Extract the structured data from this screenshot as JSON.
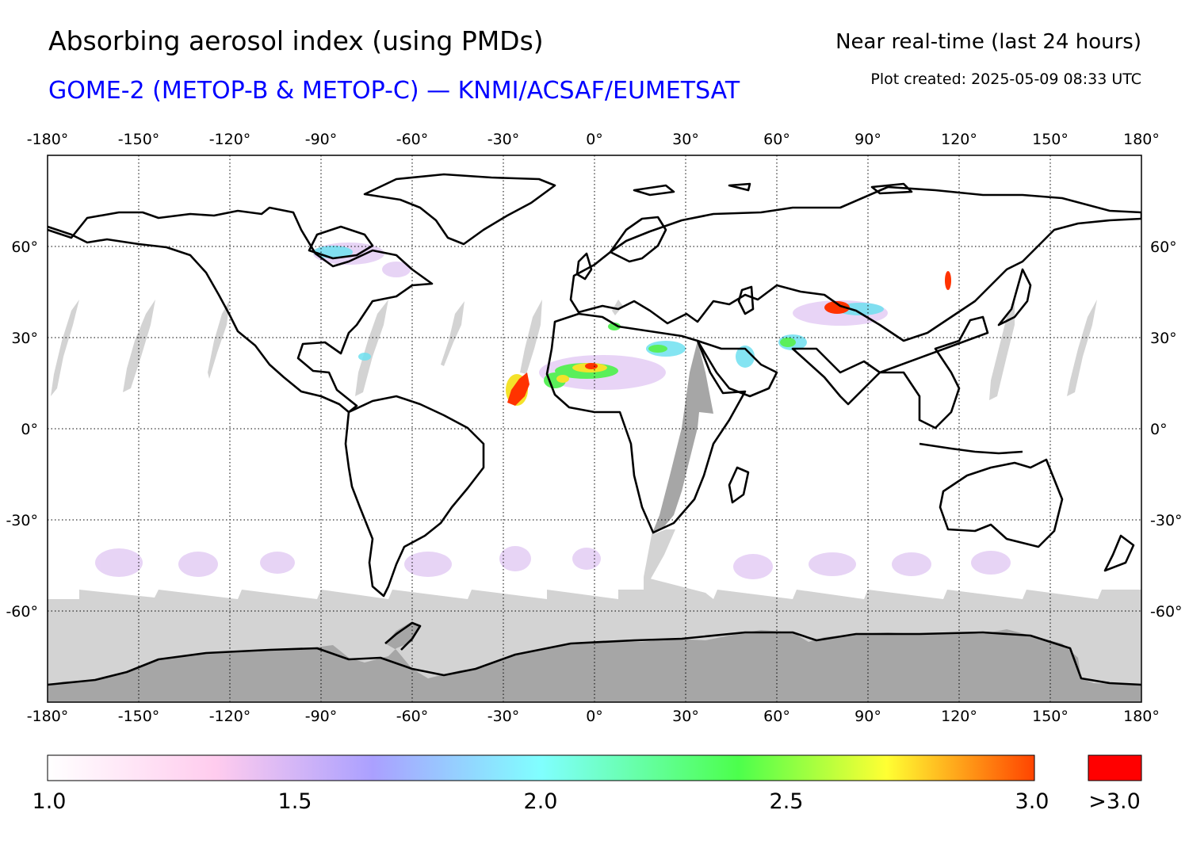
{
  "header": {
    "title": "Absorbing aerosol index (using PMDs)",
    "subtitle": "GOME-2 (METOP-B & METOP-C) — KNMI/ACSAF/EUMETSAT",
    "subtitle_color": "#0000ff",
    "mode": "Near real-time (last 24 hours)",
    "created": "Plot created: 2025-05-09 08:33 UTC"
  },
  "map": {
    "projection": "plate-carree",
    "lon_range": [
      -180,
      180
    ],
    "lat_range": [
      -90,
      90
    ],
    "lon_ticks": [
      "-180°",
      "-150°",
      "-120°",
      "-90°",
      "-60°",
      "-30°",
      "0°",
      "30°",
      "60°",
      "90°",
      "120°",
      "150°",
      "180°"
    ],
    "lat_ticks": [
      "60°",
      "30°",
      "0°",
      "-30°",
      "-60°"
    ],
    "grid": "dotted",
    "no_data_color": "#d3d3d3",
    "land_mask_color": "#a6a6a6",
    "coastline_color": "#000000",
    "hotspots": [
      {
        "region": "Sahara / West African dust",
        "aai": "2.5–3.0"
      },
      {
        "region": "Dust plume over Atlantic off West Africa",
        "aai": ">3.0"
      },
      {
        "region": "Northern India / Pakistan",
        "aai": ">3.0"
      },
      {
        "region": "Arabian Peninsula",
        "aai": "2.0–2.5"
      },
      {
        "region": "Northeast China",
        "aai": ">3.0"
      },
      {
        "region": "Canada (Hudson Bay region)",
        "aai": "2.0–2.5"
      }
    ]
  },
  "colorbar": {
    "labels": [
      "1.0",
      "1.5",
      "2.0",
      "2.5",
      "3.0"
    ],
    "values": [
      1.0,
      1.5,
      2.0,
      2.5,
      3.0
    ],
    "overflow_label": ">3.0",
    "overflow_color": "#ff0000",
    "stops": [
      "#ffffff",
      "#ffccee",
      "#aaa0ff",
      "#80ffff",
      "#4cff4c",
      "#ffff33",
      "#ff4400"
    ]
  }
}
